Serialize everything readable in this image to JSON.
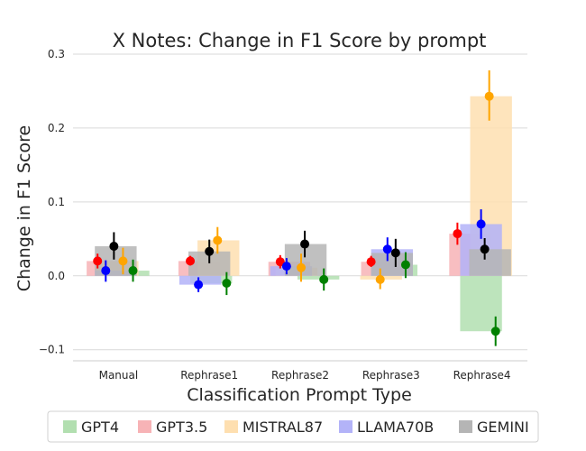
{
  "chart_data": {
    "type": "bar",
    "title": "X Notes: Change in F1 Score by prompt",
    "xlabel": "Classification Prompt Type",
    "ylabel": "Change in F1 Score",
    "categories": [
      "Manual",
      "Rephrase1",
      "Rephrase2",
      "Rephrase3",
      "Rephrase4"
    ],
    "ylim": [
      -0.115,
      0.3
    ],
    "yticks": [
      -0.1,
      0.0,
      0.1,
      0.2,
      0.3
    ],
    "ytick_labels": [
      "−0.1",
      "0.0",
      "0.1",
      "0.2",
      "0.3"
    ],
    "grid": "horizontal",
    "legend_position": "bottom",
    "series": [
      {
        "name": "GPT4",
        "bar_color": "#b2dfb0",
        "point_color": "#008000",
        "values": [
          0.007,
          -0.01,
          -0.005,
          0.015,
          -0.075
        ],
        "errors": [
          [
            -0.008,
            0.022
          ],
          [
            -0.026,
            0.005
          ],
          [
            -0.02,
            0.01
          ],
          [
            -0.003,
            0.032
          ],
          [
            -0.095,
            -0.055
          ]
        ]
      },
      {
        "name": "GPT3.5",
        "bar_color": "#f7b3b6",
        "point_color": "#ff0000",
        "values": [
          0.02,
          0.02,
          0.019,
          0.019,
          0.057
        ],
        "errors": [
          [
            0.01,
            0.03
          ],
          [
            0.014,
            0.027
          ],
          [
            0.01,
            0.028
          ],
          [
            0.012,
            0.027
          ],
          [
            0.042,
            0.072
          ]
        ]
      },
      {
        "name": "MISTRAL87",
        "bar_color": "#fedfb0",
        "point_color": "#ffa500",
        "values": [
          0.02,
          0.048,
          0.011,
          -0.005,
          0.243
        ],
        "errors": [
          [
            0.002,
            0.038
          ],
          [
            0.03,
            0.066
          ],
          [
            -0.008,
            0.03
          ],
          [
            -0.018,
            0.01
          ],
          [
            0.21,
            0.278
          ]
        ]
      },
      {
        "name": "LLAMA70B",
        "bar_color": "#b3b3f8",
        "point_color": "#0000ff",
        "values": [
          0.007,
          -0.012,
          0.013,
          0.036,
          0.07
        ],
        "errors": [
          [
            -0.008,
            0.021
          ],
          [
            -0.022,
            -0.002
          ],
          [
            0.002,
            0.024
          ],
          [
            0.02,
            0.052
          ],
          [
            0.05,
            0.09
          ]
        ]
      },
      {
        "name": "GEMINI",
        "bar_color": "#b5b5b5",
        "point_color": "#000000",
        "values": [
          0.04,
          0.033,
          0.043,
          0.031,
          0.036
        ],
        "errors": [
          [
            0.022,
            0.059
          ],
          [
            0.017,
            0.049
          ],
          [
            0.025,
            0.061
          ],
          [
            0.012,
            0.05
          ],
          [
            0.022,
            0.051
          ]
        ]
      }
    ]
  }
}
